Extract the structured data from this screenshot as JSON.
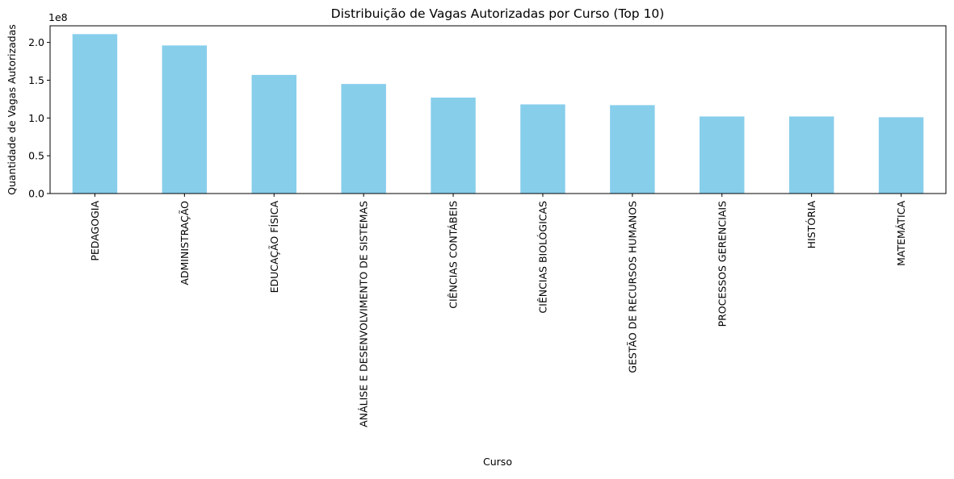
{
  "chart_data": {
    "type": "bar",
    "title": "Distribuição de Vagas Autorizadas por Curso (Top 10)",
    "xlabel": "Curso",
    "ylabel": "Quantidade de Vagas Autorizadas",
    "offset_label": "1e8",
    "categories": [
      "PEDAGOGIA",
      "ADMINISTRAÇÃO",
      "EDUCAÇÃO FÍSICA",
      "ANÁLISE E DESENVOLVIMENTO DE SISTEMAS",
      "CIÊNCIAS CONTÁBEIS",
      "CIÊNCIAS BIOLÓGICAS",
      "GESTÃO DE RECURSOS HUMANOS",
      "PROCESSOS GERENCIAIS",
      "HISTÓRIA",
      "MATEMÁTICA"
    ],
    "values": [
      211000000,
      196000000,
      157000000,
      145000000,
      127000000,
      118000000,
      117000000,
      102000000,
      102000000,
      101000000
    ],
    "yticks": [
      0,
      0.5,
      1.0,
      1.5,
      2.0
    ],
    "ytick_labels": [
      "0.0",
      "0.5",
      "1.0",
      "1.5",
      "2.0"
    ],
    "ylim": [
      0,
      222000000
    ],
    "grid": false,
    "bar_color": "#87ceeb"
  }
}
